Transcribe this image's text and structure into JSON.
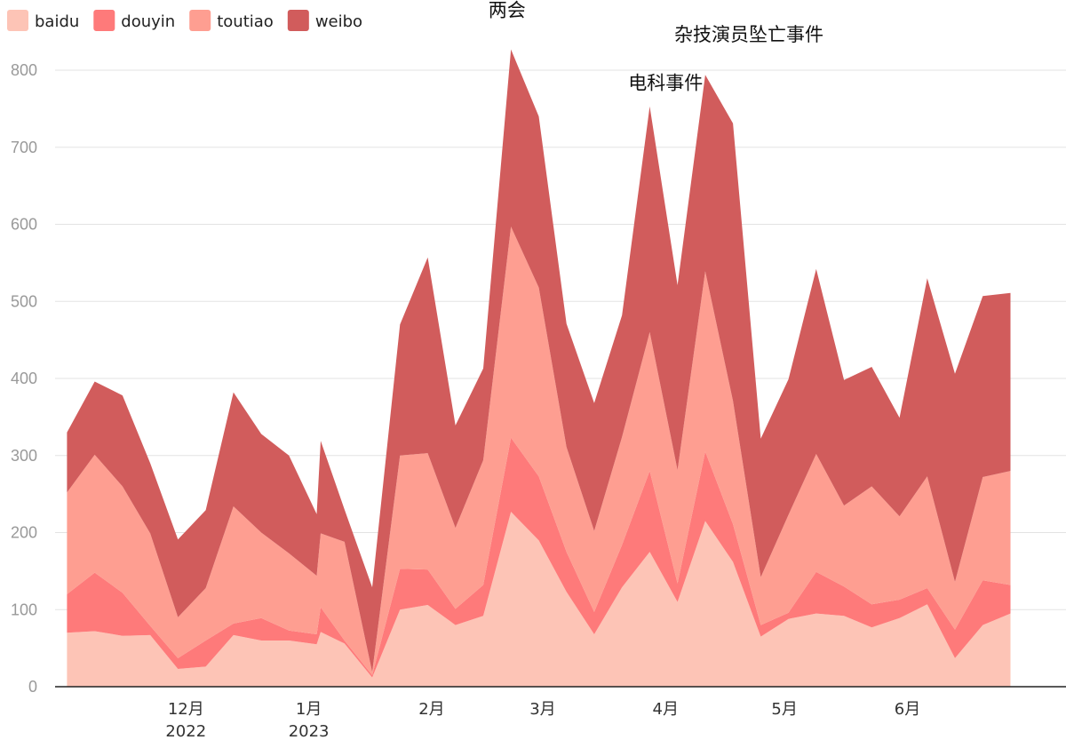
{
  "chart_data": {
    "type": "area",
    "stacked": true,
    "x_dates": [
      "2022-11-01",
      "2022-11-08",
      "2022-11-15",
      "2022-11-22",
      "2022-11-29",
      "2022-12-06",
      "2022-12-13",
      "2022-12-20",
      "2022-12-27",
      "2023-01-03",
      "2023-01-04",
      "2023-01-10",
      "2023-01-17",
      "2023-01-24",
      "2023-01-31",
      "2023-02-07",
      "2023-02-14",
      "2023-02-21",
      "2023-02-28",
      "2023-03-07",
      "2023-03-14",
      "2023-03-21",
      "2023-03-28",
      "2023-04-04",
      "2023-04-11",
      "2023-04-18",
      "2023-04-25",
      "2023-05-02",
      "2023-05-09",
      "2023-05-16",
      "2023-05-23",
      "2023-05-30",
      "2023-06-06",
      "2023-06-13",
      "2023-06-20",
      "2023-06-27"
    ],
    "series": [
      {
        "name": "baidu",
        "color": "#fdc4b6",
        "values": [
          70,
          72,
          66,
          67,
          23,
          26,
          67,
          60,
          60,
          55,
          71,
          56,
          12,
          100,
          106,
          80,
          92,
          227,
          190,
          123,
          68,
          129,
          175,
          110,
          215,
          162,
          65,
          88,
          95,
          92,
          77,
          89,
          107,
          37,
          80,
          95
        ]
      },
      {
        "name": "douyin",
        "color": "#fe7a7a",
        "values": [
          50,
          76,
          56,
          12,
          14,
          34,
          15,
          29,
          13,
          13,
          32,
          4,
          3,
          53,
          46,
          21,
          40,
          96,
          83,
          52,
          29,
          55,
          105,
          24,
          90,
          49,
          15,
          8,
          54,
          38,
          30,
          24,
          21,
          37,
          58,
          37
        ]
      },
      {
        "name": "toutiao",
        "color": "#fe9e91",
        "values": [
          132,
          153,
          138,
          120,
          53,
          68,
          152,
          111,
          100,
          76,
          96,
          128,
          4,
          147,
          151,
          105,
          162,
          274,
          245,
          136,
          105,
          140,
          180,
          147,
          234,
          160,
          62,
          127,
          153,
          105,
          153,
          108,
          145,
          62,
          134,
          148
        ]
      },
      {
        "name": "weibo",
        "color": "#d15c5c",
        "values": [
          78,
          95,
          118,
          91,
          101,
          101,
          148,
          128,
          127,
          80,
          120,
          42,
          110,
          170,
          254,
          133,
          119,
          230,
          222,
          160,
          166,
          158,
          293,
          240,
          255,
          360,
          180,
          176,
          240,
          163,
          155,
          128,
          257,
          270,
          235,
          231
        ]
      }
    ],
    "x_ticks": [
      {
        "date": "2022-12-01",
        "label": "12月",
        "sublabel": "2022"
      },
      {
        "date": "2023-01-01",
        "label": "1月",
        "sublabel": "2023"
      },
      {
        "date": "2023-02-01",
        "label": "2月",
        "sublabel": ""
      },
      {
        "date": "2023-03-01",
        "label": "3月",
        "sublabel": ""
      },
      {
        "date": "2023-04-01",
        "label": "4月",
        "sublabel": ""
      },
      {
        "date": "2023-05-01",
        "label": "5月",
        "sublabel": ""
      },
      {
        "date": "2023-06-01",
        "label": "6月",
        "sublabel": ""
      }
    ],
    "y_ticks": [
      0,
      100,
      200,
      300,
      400,
      500,
      600,
      700,
      800
    ],
    "ylim": [
      0,
      830
    ],
    "xlim": [
      "2022-10-29",
      "2023-07-11"
    ],
    "grid": true,
    "legend_position": "top-left",
    "annotations": [
      {
        "text": "两会",
        "date": "2023-02-20",
        "y": 870
      },
      {
        "text": "电科事件",
        "date": "2023-04-01",
        "y": 775
      },
      {
        "text": "杂技演员坠亡事件",
        "date": "2023-04-22",
        "y": 838
      }
    ]
  }
}
